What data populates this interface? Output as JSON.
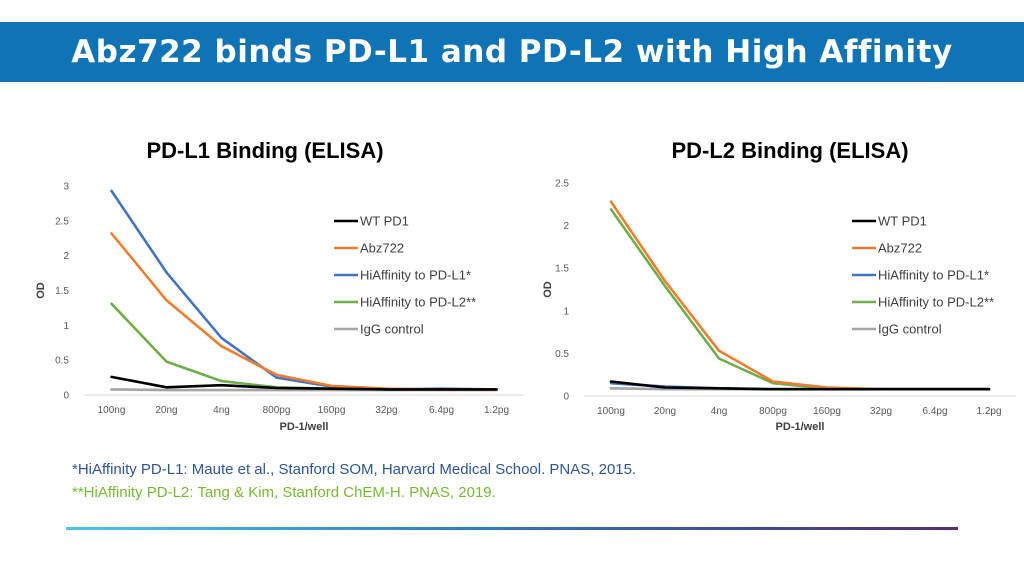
{
  "slide": {
    "title": "Abz722 binds PD-L1 and PD-L2 with High Affinity",
    "footnotes": [
      "*HiAffinity PD-L1: Maute et al., Stanford SOM, Harvard Medical School. PNAS, 2015.",
      "**HiAffinity PD-L2: Tang & Kim, Stanford ChEM-H. PNAS, 2019."
    ],
    "colors": {
      "title_bar": "#0f73b6",
      "footnote_1": "#2e5597",
      "footnote_2": "#78b833"
    }
  },
  "chart_data": [
    {
      "type": "line",
      "title": "PD-L1 Binding (ELISA)",
      "xlabel": "PD-1/well",
      "ylabel": "OD",
      "categories": [
        "100ng",
        "20ng",
        "4ng",
        "800pg",
        "160pg",
        "32pg",
        "6.4pg",
        "1.2pg"
      ],
      "ylim": [
        0,
        3
      ],
      "yticks": [
        "0",
        "0.5",
        "1",
        "1.5",
        "2",
        "2.5",
        "3"
      ],
      "series": [
        {
          "name": "WT PD1",
          "color": "#000000",
          "values": [
            0.26,
            0.11,
            0.14,
            0.1,
            0.09,
            0.08,
            0.08,
            0.08
          ]
        },
        {
          "name": "Abz722",
          "color": "#ed7d31",
          "values": [
            2.32,
            1.36,
            0.7,
            0.29,
            0.13,
            0.09,
            0.08,
            0.08
          ]
        },
        {
          "name": "HiAffinity to PD-L1*",
          "color": "#4472c4",
          "values": [
            2.93,
            1.76,
            0.82,
            0.25,
            0.12,
            0.08,
            0.09,
            0.08
          ]
        },
        {
          "name": "HiAffinity to PD-L2**",
          "color": "#70ad47",
          "values": [
            1.31,
            0.48,
            0.2,
            0.11,
            0.09,
            0.08,
            0.08,
            0.08
          ]
        },
        {
          "name": "IgG control",
          "color": "#a5a5a5",
          "values": [
            0.08,
            0.07,
            0.07,
            0.07,
            0.07,
            0.07,
            0.07,
            0.07
          ]
        }
      ]
    },
    {
      "type": "line",
      "title": "PD-L2 Binding (ELISA)",
      "xlabel": "PD-1/well",
      "ylabel": "OD",
      "categories": [
        "100ng",
        "20ng",
        "4ng",
        "800pg",
        "160pg",
        "32pg",
        "6.4pg",
        "1.2pg"
      ],
      "ylim": [
        0,
        2.5
      ],
      "yticks": [
        "0",
        "0.5",
        "1",
        "1.5",
        "2",
        "2.5"
      ],
      "series": [
        {
          "name": "WT PD1",
          "color": "#000000",
          "values": [
            0.17,
            0.1,
            0.09,
            0.08,
            0.08,
            0.08,
            0.08,
            0.08
          ]
        },
        {
          "name": "Abz722",
          "color": "#ed7d31",
          "values": [
            2.28,
            1.35,
            0.53,
            0.17,
            0.1,
            0.08,
            0.08,
            0.08
          ]
        },
        {
          "name": "HiAffinity to PD-L1*",
          "color": "#4472c4",
          "values": [
            0.15,
            0.11,
            0.09,
            0.08,
            0.08,
            0.08,
            0.08,
            0.08
          ]
        },
        {
          "name": "HiAffinity to PD-L2**",
          "color": "#70ad47",
          "values": [
            2.19,
            1.29,
            0.44,
            0.15,
            0.09,
            0.08,
            0.08,
            0.08
          ]
        },
        {
          "name": "IgG control",
          "color": "#a5a5a5",
          "values": [
            0.09,
            0.08,
            0.08,
            0.08,
            0.08,
            0.08,
            0.08,
            0.08
          ]
        }
      ]
    }
  ]
}
